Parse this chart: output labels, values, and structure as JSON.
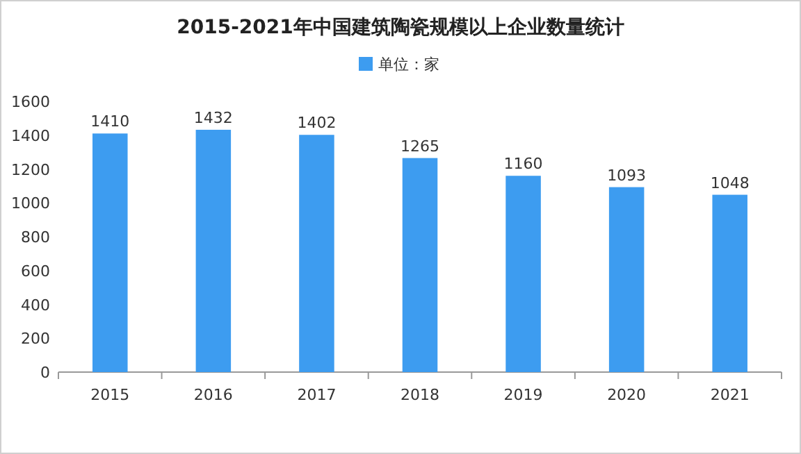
{
  "chart_data": {
    "type": "bar",
    "title": "2015-2021年中国建筑陶瓷规模以上企业数量统计",
    "categories": [
      "2015",
      "2016",
      "2017",
      "2018",
      "2019",
      "2020",
      "2021"
    ],
    "series": [
      {
        "name": "单位：家",
        "color": "#3d9cf0",
        "values": [
          1410,
          1432,
          1402,
          1265,
          1160,
          1093,
          1048
        ]
      }
    ],
    "ylim": [
      0,
      1600
    ],
    "yticks": [
      0,
      200,
      400,
      600,
      800,
      1000,
      1200,
      1400,
      1600
    ],
    "data_labels": true,
    "legend": "top"
  }
}
